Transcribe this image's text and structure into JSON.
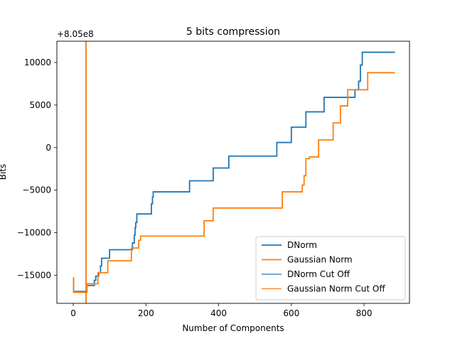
{
  "chart_data": {
    "type": "line",
    "title": "5 bits compression",
    "xlabel": "Number of Components",
    "ylabel": "Bits",
    "offset_text": "+8.05e8",
    "xlim": [
      -45,
      925
    ],
    "ylim": [
      -18300,
      12500
    ],
    "xticks": [
      0,
      200,
      400,
      600,
      800
    ],
    "yticks": [
      -15000,
      -10000,
      -5000,
      0,
      5000,
      10000
    ],
    "legend_position": "lower right",
    "series": [
      {
        "name": "DNorm",
        "color": "#1f77b4",
        "style": "step",
        "x": [
          0,
          1,
          35,
          37,
          55,
          58,
          62,
          65,
          70,
          75,
          78,
          85,
          100,
          160,
          163,
          168,
          170,
          172,
          175,
          185,
          215,
          218,
          220,
          320,
          385,
          428,
          560,
          595,
          600,
          635,
          640,
          690,
          770,
          775,
          785,
          790,
          795,
          800,
          885
        ],
        "y": [
          -15300,
          -16900,
          -16900,
          -16200,
          -16200,
          -15600,
          -15100,
          -15100,
          -14700,
          -13900,
          -13000,
          -13000,
          -12000,
          -12000,
          -11200,
          -10300,
          -9400,
          -8800,
          -7800,
          -7800,
          -6600,
          -5800,
          -5200,
          -3900,
          -2400,
          -1000,
          600,
          600,
          2400,
          2400,
          4200,
          5900,
          5900,
          6800,
          7800,
          9700,
          11200,
          11200,
          11200
        ]
      },
      {
        "name": "Gaussian Norm",
        "color": "#ff7f0e",
        "style": "step",
        "x": [
          0,
          1,
          35,
          38,
          50,
          65,
          68,
          75,
          95,
          155,
          160,
          180,
          185,
          360,
          385,
          570,
          575,
          580,
          630,
          635,
          640,
          650,
          655,
          675,
          715,
          735,
          745,
          755,
          760,
          810,
          885
        ],
        "y": [
          -15300,
          -17000,
          -17000,
          -16000,
          -16000,
          -16000,
          -14700,
          -14700,
          -13300,
          -13300,
          -11800,
          -10900,
          -10400,
          -8600,
          -7100,
          -7100,
          -5200,
          -5200,
          -4400,
          -3300,
          -1300,
          -1100,
          -1100,
          900,
          2900,
          4900,
          4900,
          6800,
          6800,
          8800,
          8800
        ]
      },
      {
        "name": "DNorm Cut Off",
        "color": "#1f77b4",
        "style": "vline",
        "x": 35
      },
      {
        "name": "Gaussian Norm Cut Off",
        "color": "#ff7f0e",
        "style": "vline",
        "x": 36
      }
    ]
  }
}
